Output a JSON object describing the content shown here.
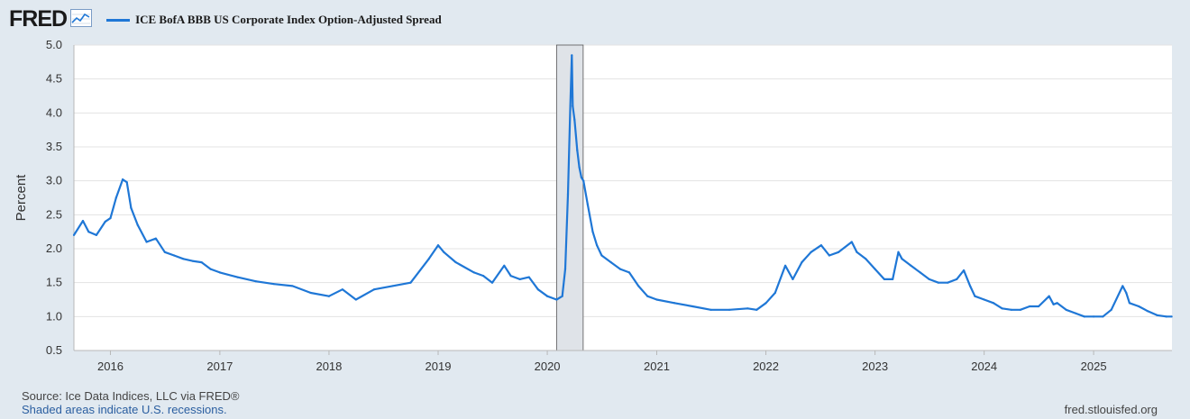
{
  "brand": {
    "logo": "FRED",
    "logo_icon": "line-chart-icon"
  },
  "footer": {
    "source": "Source: Ice Data Indices, LLC via FRED®",
    "recession_note": "Shaded areas indicate U.S. recessions.",
    "site": "fred.stlouisfed.org"
  },
  "colors": {
    "series": "#1f77d6",
    "background": "#e1e9f0",
    "plot": "#ffffff",
    "grid": "#e3e3e3",
    "recession": "#dfe3e8"
  },
  "chart_data": {
    "type": "line",
    "title": "",
    "xlabel": "",
    "ylabel": "Percent",
    "ylim": [
      0.5,
      5.0
    ],
    "yticks": [
      "0.5",
      "1.0",
      "1.5",
      "2.0",
      "2.5",
      "3.0",
      "3.5",
      "4.0",
      "4.5",
      "5.0"
    ],
    "xlim": [
      "2015-09-01",
      "2025-09-20"
    ],
    "xticks": [
      "2016",
      "2017",
      "2018",
      "2019",
      "2020",
      "2021",
      "2022",
      "2023",
      "2024",
      "2025"
    ],
    "grid": true,
    "recessions": [
      {
        "start": "2020-02-01",
        "end": "2020-04-30"
      }
    ],
    "series": [
      {
        "name": "ICE BofA BBB US Corporate Index Option-Adjusted Spread",
        "x": [
          "2015-09-01",
          "2015-10-01",
          "2015-10-20",
          "2015-11-15",
          "2015-12-15",
          "2016-01-01",
          "2016-01-20",
          "2016-02-11",
          "2016-02-25",
          "2016-03-10",
          "2016-04-01",
          "2016-05-01",
          "2016-06-01",
          "2016-07-01",
          "2016-08-01",
          "2016-09-01",
          "2016-10-01",
          "2016-11-01",
          "2016-12-01",
          "2017-01-01",
          "2017-03-01",
          "2017-05-01",
          "2017-07-01",
          "2017-09-01",
          "2017-11-01",
          "2018-01-01",
          "2018-02-15",
          "2018-04-01",
          "2018-06-01",
          "2018-08-01",
          "2018-10-01",
          "2018-12-01",
          "2019-01-01",
          "2019-01-20",
          "2019-03-01",
          "2019-05-01",
          "2019-06-01",
          "2019-07-01",
          "2019-08-10",
          "2019-09-01",
          "2019-10-01",
          "2019-11-01",
          "2019-12-01",
          "2020-01-01",
          "2020-02-01",
          "2020-02-20",
          "2020-03-01",
          "2020-03-10",
          "2020-03-18",
          "2020-03-23",
          "2020-03-26",
          "2020-04-01",
          "2020-04-10",
          "2020-04-17",
          "2020-04-24",
          "2020-05-01",
          "2020-05-15",
          "2020-06-01",
          "2020-06-15",
          "2020-07-01",
          "2020-08-01",
          "2020-09-01",
          "2020-10-01",
          "2020-11-01",
          "2020-12-01",
          "2021-01-01",
          "2021-03-01",
          "2021-05-01",
          "2021-07-01",
          "2021-09-01",
          "2021-11-01",
          "2021-12-01",
          "2022-01-01",
          "2022-02-01",
          "2022-03-07",
          "2022-04-01",
          "2022-05-01",
          "2022-06-01",
          "2022-07-05",
          "2022-08-01",
          "2022-09-01",
          "2022-10-15",
          "2022-11-01",
          "2022-12-01",
          "2023-01-01",
          "2023-02-01",
          "2023-03-01",
          "2023-03-20",
          "2023-04-01",
          "2023-05-01",
          "2023-06-01",
          "2023-07-01",
          "2023-08-01",
          "2023-09-01",
          "2023-10-01",
          "2023-10-25",
          "2023-11-15",
          "2023-12-01",
          "2024-01-01",
          "2024-02-01",
          "2024-03-01",
          "2024-04-01",
          "2024-05-01",
          "2024-06-01",
          "2024-07-01",
          "2024-08-05",
          "2024-08-20",
          "2024-09-01",
          "2024-10-01",
          "2024-11-01",
          "2024-12-01",
          "2025-01-01",
          "2025-02-01",
          "2025-03-01",
          "2025-04-08",
          "2025-04-20",
          "2025-05-01",
          "2025-06-01",
          "2025-07-01",
          "2025-08-01",
          "2025-09-01",
          "2025-09-19"
        ],
        "y": [
          2.2,
          2.41,
          2.25,
          2.2,
          2.4,
          2.45,
          2.75,
          3.02,
          2.98,
          2.6,
          2.35,
          2.1,
          2.15,
          1.95,
          1.9,
          1.85,
          1.82,
          1.8,
          1.7,
          1.65,
          1.58,
          1.52,
          1.48,
          1.45,
          1.35,
          1.3,
          1.4,
          1.25,
          1.4,
          1.45,
          1.5,
          1.85,
          2.05,
          1.95,
          1.8,
          1.65,
          1.6,
          1.5,
          1.75,
          1.6,
          1.55,
          1.58,
          1.4,
          1.3,
          1.25,
          1.3,
          1.7,
          2.8,
          4.1,
          4.85,
          4.1,
          3.9,
          3.45,
          3.2,
          3.05,
          3.0,
          2.65,
          2.25,
          2.05,
          1.9,
          1.8,
          1.7,
          1.65,
          1.45,
          1.3,
          1.25,
          1.2,
          1.15,
          1.1,
          1.1,
          1.12,
          1.1,
          1.2,
          1.35,
          1.75,
          1.55,
          1.8,
          1.95,
          2.05,
          1.9,
          1.95,
          2.1,
          1.95,
          1.85,
          1.7,
          1.55,
          1.55,
          1.95,
          1.85,
          1.75,
          1.65,
          1.55,
          1.5,
          1.5,
          1.55,
          1.68,
          1.45,
          1.3,
          1.25,
          1.2,
          1.12,
          1.1,
          1.1,
          1.15,
          1.15,
          1.3,
          1.18,
          1.2,
          1.1,
          1.05,
          1.0,
          1.0,
          1.0,
          1.1,
          1.45,
          1.35,
          1.2,
          1.15,
          1.08,
          1.02,
          1.0,
          1.0
        ]
      }
    ]
  }
}
